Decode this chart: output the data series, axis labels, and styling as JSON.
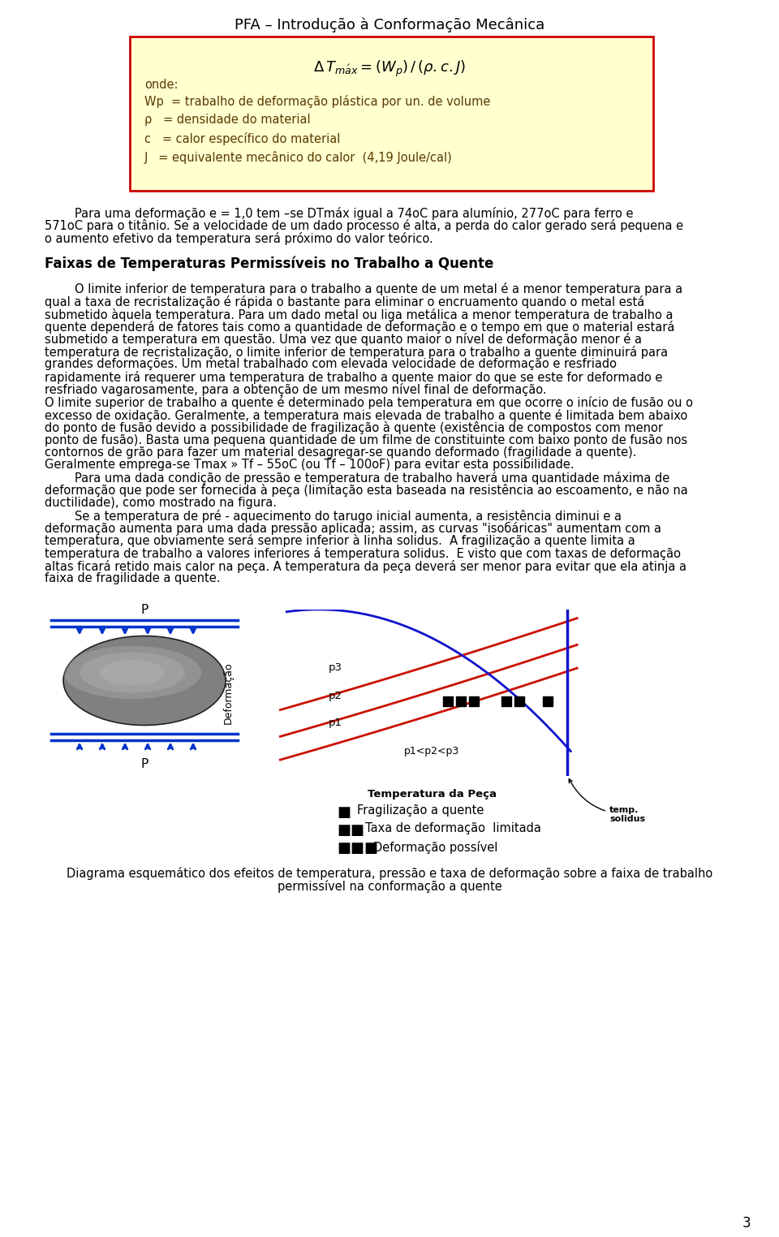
{
  "page_title": "PFA – Introdução à Conformação Mecânica",
  "page_number": "3",
  "box_bg": "#ffffd0",
  "box_border": "#cc0000",
  "para1_indent": "        Para uma deformação e = 1,0 tem –se DTmáx igual a 74oC para alumínio, 277oC para ferro e",
  "para1_line2": "571oC para o titânio. Se a velocidade de um dado processo é alta, a perda do calor gerado será pequena e",
  "para1_line3": "o aumento efetivo da temperatura será próximo do valor teórico.",
  "section_title": "Faixas de Temperaturas Permissíveis no Trabalho a Quente",
  "body_lines": [
    "        O limite inferior de temperatura para o trabalho a quente de um metal é a menor temperatura para a",
    "qual a taxa de recristalização é rápida o bastante para eliminar o encruamento quando o metal está",
    "submetido àquela temperatura. Para um dado metal ou liga metálica a menor temperatura de trabalho a",
    "quente dependerá de fatores tais como a quantidade de deformação e o tempo em que o material estará",
    "submetido a temperatura em questão. Uma vez que quanto maior o nível de deformação menor é a",
    "temperatura de recristalização, o limite inferior de temperatura para o trabalho a quente diminuirá para",
    "grandes deformações. Um metal trabalhado com elevada velocidade de deformação e resfriado",
    "rapidamente irá requerer uma temperatura de trabalho a quente maior do que se este for deformado e",
    "resfriado vagarosamente, para a obtenção de um mesmo nível final de deformação.",
    "O limite superior de trabalho a quente é determinado pela temperatura em que ocorre o início de fusão ou o",
    "excesso de oxidação. Geralmente, a temperatura mais elevada de trabalho a quente é limitada bem abaixo",
    "do ponto de fusão devido a possibilidade de fragilização à quente (existência de compostos com menor",
    "ponto de fusão). Basta uma pequena quantidade de um filme de constituinte com baixo ponto de fusão nos",
    "contornos de grão para fazer um material desagregar-se quando deformado (fragilidade a quente).",
    "Geralmente emprega-se Tmax » Tf – 55oC (ou Tf – 100oF) para evitar esta possibilidade.",
    "        Para uma dada condição de pressão e temperatura de trabalho haverá uma quantidade máxima de",
    "deformação que pode ser fornecida à peça (limitação esta baseada na resistência ao escoamento, e não na",
    "ductilidade), como mostrado na figura.",
    "        Se a temperatura de pré - aquecimento do tarugo inicial aumenta, a resistência diminui e a",
    "deformação aumenta para uma dada pressão aplicada; assim, as curvas \"isoбáricas\" aumentam com a",
    "temperatura, que obviamente será sempre inferior à linha solidus.  A fragilização a quente limita a",
    "temperatura de trabalho a valores inferiores á temperatura solidus.  E visto que com taxas de deformação",
    "altas ficará retido mais calor na peça. A temperatura da peça deverá ser menor para evitar que ela atinja a",
    "faixa de fragilidade a quente."
  ],
  "caption_line1": "Diagrama esquemático dos efeitos de temperatura, pressão e taxa de deformação sobre a faixa de trabalho",
  "caption_line2": "permissível na conformação a quente",
  "background": "#ffffff",
  "text_color": "#000000",
  "box_formula_color": "#000000",
  "box_text_color": "#5a3a00"
}
